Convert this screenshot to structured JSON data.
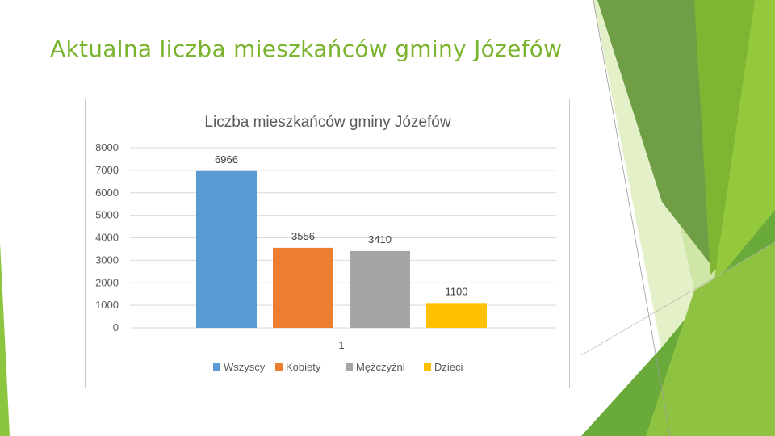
{
  "slide": {
    "title": "Aktualna liczba mieszkańców gminy Józefów",
    "title_color": "#7ab32e"
  },
  "theme_colors": {
    "light_green": "#92c83e",
    "mid_green": "#6aa536",
    "dark_green": "#4e8a2a",
    "pale_green": "#d6e9b0"
  },
  "chart_data": {
    "type": "bar",
    "title": "Liczba mieszkańców gminy Józefów",
    "categories": [
      "1"
    ],
    "series": [
      {
        "name": "Wszyscy",
        "values": [
          6966
        ],
        "color": "#5b9bd5"
      },
      {
        "name": "Kobiety",
        "values": [
          3556
        ],
        "color": "#ed7d31"
      },
      {
        "name": "Mężczyźni",
        "values": [
          3410
        ],
        "color": "#a5a5a5"
      },
      {
        "name": "Dzieci",
        "values": [
          1100
        ],
        "color": "#ffc000"
      }
    ],
    "ylim": [
      0,
      8000
    ],
    "yticks": [
      0,
      1000,
      2000,
      3000,
      4000,
      5000,
      6000,
      7000,
      8000
    ],
    "xlabel": "",
    "ylabel": "",
    "grid": true,
    "legend": "bottom"
  }
}
